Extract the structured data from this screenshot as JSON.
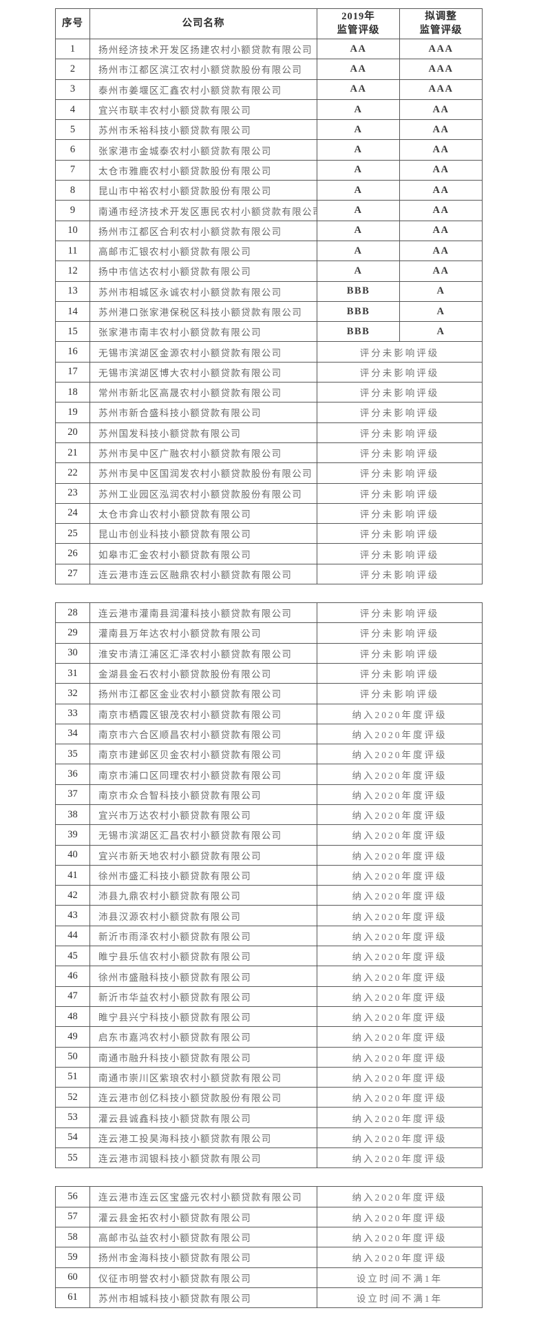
{
  "table": {
    "headers": {
      "serial": "序号",
      "company": "公司名称",
      "rating_2019": "2019年\n监管评级",
      "rating_adjusted": "拟调整\n监管评级"
    },
    "status_values": [
      "评分未影响评级",
      "纳入2020年度评级",
      "设立时间不满1年"
    ],
    "blocks": [
      {
        "rows": [
          {
            "no": "1",
            "name": "扬州经济技术开发区扬建农村小额贷款有限公司",
            "r2019": "AA",
            "adj": "AAA"
          },
          {
            "no": "2",
            "name": "扬州市江都区滨江农村小额贷款股份有限公司",
            "r2019": "AA",
            "adj": "AAA"
          },
          {
            "no": "3",
            "name": "泰州市姜堰区汇鑫农村小额贷款有限公司",
            "r2019": "AA",
            "adj": "AAA"
          },
          {
            "no": "4",
            "name": "宜兴市联丰农村小额贷款有限公司",
            "r2019": "A",
            "adj": "AA"
          },
          {
            "no": "5",
            "name": "苏州市禾裕科技小额贷款有限公司",
            "r2019": "A",
            "adj": "AA"
          },
          {
            "no": "6",
            "name": "张家港市金城泰农村小额贷款有限公司",
            "r2019": "A",
            "adj": "AA"
          },
          {
            "no": "7",
            "name": "太仓市雅鹿农村小额贷款股份有限公司",
            "r2019": "A",
            "adj": "AA"
          },
          {
            "no": "8",
            "name": "昆山市中裕农村小额贷款股份有限公司",
            "r2019": "A",
            "adj": "AA"
          },
          {
            "no": "9",
            "name": "南通市经济技术开发区惠民农村小额贷款有限公司",
            "r2019": "A",
            "adj": "AA"
          },
          {
            "no": "10",
            "name": "扬州市江都区合利农村小额贷款有限公司",
            "r2019": "A",
            "adj": "AA"
          },
          {
            "no": "11",
            "name": "高邮市汇银农村小额贷款有限公司",
            "r2019": "A",
            "adj": "AA"
          },
          {
            "no": "12",
            "name": "扬中市信达农村小额贷款有限公司",
            "r2019": "A",
            "adj": "AA"
          },
          {
            "no": "13",
            "name": "苏州市相城区永诚农村小额贷款有限公司",
            "r2019": "BBB",
            "adj": "A"
          },
          {
            "no": "14",
            "name": "苏州港口张家港保税区科技小额贷款有限公司",
            "r2019": "BBB",
            "adj": "A"
          },
          {
            "no": "15",
            "name": "张家港市南丰农村小额贷款有限公司",
            "r2019": "BBB",
            "adj": "A"
          },
          {
            "no": "16",
            "name": "无锡市滨湖区金源农村小额贷款有限公司",
            "status": "评分未影响评级"
          },
          {
            "no": "17",
            "name": "无锡市滨湖区博大农村小额贷款有限公司",
            "status": "评分未影响评级"
          },
          {
            "no": "18",
            "name": "常州市新北区高晟农村小额贷款有限公司",
            "status": "评分未影响评级"
          },
          {
            "no": "19",
            "name": "苏州市新合盛科技小额贷款有限公司",
            "status": "评分未影响评级"
          },
          {
            "no": "20",
            "name": "苏州国发科技小额贷款有限公司",
            "status": "评分未影响评级"
          },
          {
            "no": "21",
            "name": "苏州市吴中区广融农村小额贷款有限公司",
            "status": "评分未影响评级"
          },
          {
            "no": "22",
            "name": "苏州市吴中区国润发农村小额贷款股份有限公司",
            "status": "评分未影响评级"
          },
          {
            "no": "23",
            "name": "苏州工业园区泓润农村小额贷款股份有限公司",
            "status": "评分未影响评级"
          },
          {
            "no": "24",
            "name": "太仓市弇山农村小额贷款有限公司",
            "status": "评分未影响评级"
          },
          {
            "no": "25",
            "name": "昆山市创业科技小额贷款有限公司",
            "status": "评分未影响评级"
          },
          {
            "no": "26",
            "name": "如皋市汇金农村小额贷款有限公司",
            "status": "评分未影响评级"
          },
          {
            "no": "27",
            "name": "连云港市连云区融鼎农村小额贷款有限公司",
            "status": "评分未影响评级"
          }
        ]
      },
      {
        "rows": [
          {
            "no": "28",
            "name": "连云港市灌南县润灌科技小额贷款有限公司",
            "status": "评分未影响评级"
          },
          {
            "no": "29",
            "name": "灌南县万年达农村小额贷款有限公司",
            "status": "评分未影响评级"
          },
          {
            "no": "30",
            "name": "淮安市清江浦区汇泽农村小额贷款有限公司",
            "status": "评分未影响评级"
          },
          {
            "no": "31",
            "name": "金湖县金石农村小额贷款股份有限公司",
            "status": "评分未影响评级"
          },
          {
            "no": "32",
            "name": "扬州市江都区金业农村小额贷款有限公司",
            "status": "评分未影响评级"
          },
          {
            "no": "33",
            "name": "南京市栖霞区银茂农村小额贷款有限公司",
            "status": "纳入2020年度评级"
          },
          {
            "no": "34",
            "name": "南京市六合区顺昌农村小额贷款有限公司",
            "status": "纳入2020年度评级"
          },
          {
            "no": "35",
            "name": "南京市建邺区贝金农村小额贷款有限公司",
            "status": "纳入2020年度评级"
          },
          {
            "no": "36",
            "name": "南京市浦口区同理农村小额贷款有限公司",
            "status": "纳入2020年度评级"
          },
          {
            "no": "37",
            "name": "南京市众合智科技小额贷款有限公司",
            "status": "纳入2020年度评级"
          },
          {
            "no": "38",
            "name": "宜兴市万达农村小额贷款有限公司",
            "status": "纳入2020年度评级"
          },
          {
            "no": "39",
            "name": "无锡市滨湖区汇昌农村小额贷款有限公司",
            "status": "纳入2020年度评级"
          },
          {
            "no": "40",
            "name": "宜兴市新天地农村小额贷款有限公司",
            "status": "纳入2020年度评级"
          },
          {
            "no": "41",
            "name": "徐州市盛汇科技小额贷款有限公司",
            "status": "纳入2020年度评级"
          },
          {
            "no": "42",
            "name": "沛县九鼎农村小额贷款有限公司",
            "status": "纳入2020年度评级"
          },
          {
            "no": "43",
            "name": "沛县汉源农村小额贷款有限公司",
            "status": "纳入2020年度评级"
          },
          {
            "no": "44",
            "name": "新沂市雨泽农村小额贷款有限公司",
            "status": "纳入2020年度评级"
          },
          {
            "no": "45",
            "name": "睢宁县乐信农村小额贷款有限公司",
            "status": "纳入2020年度评级"
          },
          {
            "no": "46",
            "name": "徐州市盛融科技小额贷款有限公司",
            "status": "纳入2020年度评级"
          },
          {
            "no": "47",
            "name": "新沂市华益农村小额贷款有限公司",
            "status": "纳入2020年度评级"
          },
          {
            "no": "48",
            "name": "睢宁县兴宁科技小额贷款有限公司",
            "status": "纳入2020年度评级"
          },
          {
            "no": "49",
            "name": "启东市嘉鸿农村小额贷款有限公司",
            "status": "纳入2020年度评级"
          },
          {
            "no": "50",
            "name": "南通市融升科技小额贷款有限公司",
            "status": "纳入2020年度评级"
          },
          {
            "no": "51",
            "name": "南通市崇川区紫琅农村小额贷款有限公司",
            "status": "纳入2020年度评级"
          },
          {
            "no": "52",
            "name": "连云港市创亿科技小额贷款股份有限公司",
            "status": "纳入2020年度评级"
          },
          {
            "no": "53",
            "name": "灌云县诚鑫科技小额贷款有限公司",
            "status": "纳入2020年度评级"
          },
          {
            "no": "54",
            "name": "连云港工投昊海科技小额贷款有限公司",
            "status": "纳入2020年度评级"
          },
          {
            "no": "55",
            "name": "连云港市润银科技小额贷款有限公司",
            "status": "纳入2020年度评级"
          }
        ]
      },
      {
        "rows": [
          {
            "no": "56",
            "name": "连云港市连云区宝盛元农村小额贷款有限公司",
            "status": "纳入2020年度评级"
          },
          {
            "no": "57",
            "name": "灌云县金拓农村小额贷款有限公司",
            "status": "纳入2020年度评级"
          },
          {
            "no": "58",
            "name": "高邮市弘益农村小额贷款有限公司",
            "status": "纳入2020年度评级"
          },
          {
            "no": "59",
            "name": "扬州市金海科技小额贷款有限公司",
            "status": "纳入2020年度评级"
          },
          {
            "no": "60",
            "name": "仪征市明誉农村小额贷款有限公司",
            "status": "设立时间不满1年"
          },
          {
            "no": "61",
            "name": "苏州市相城科技小额贷款有限公司",
            "status": "设立时间不满1年"
          }
        ]
      }
    ]
  }
}
